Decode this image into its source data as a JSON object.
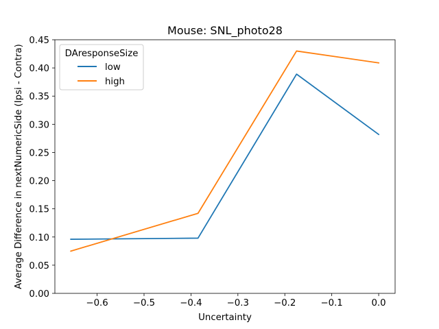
{
  "chart_data": {
    "type": "line",
    "title": "Mouse: SNL_photo28",
    "xlabel": "Uncertainty",
    "ylabel": "Average Difference in nextNumericSide (Ipsi - Contra)",
    "xlim": [
      -0.69,
      0.035
    ],
    "ylim": [
      0.0,
      0.45
    ],
    "xticks": [
      -0.6,
      -0.5,
      -0.4,
      -0.3,
      -0.2,
      -0.1,
      0.0
    ],
    "xtick_labels": [
      "−0.6",
      "−0.5",
      "−0.4",
      "−0.3",
      "−0.2",
      "−0.1",
      "0.0"
    ],
    "yticks": [
      0.0,
      0.05,
      0.1,
      0.15,
      0.2,
      0.25,
      0.3,
      0.35,
      0.4,
      0.45
    ],
    "ytick_labels": [
      "0.00",
      "0.05",
      "0.10",
      "0.15",
      "0.20",
      "0.25",
      "0.30",
      "0.35",
      "0.40",
      "0.45"
    ],
    "grid": false,
    "legend": {
      "title": "DAresponseSize",
      "placement": "top-left"
    },
    "series": [
      {
        "name": "low",
        "color": "#1f77b4",
        "x": [
          -0.656,
          -0.385,
          -0.175,
          0.0
        ],
        "y": [
          0.096,
          0.098,
          0.389,
          0.282
        ]
      },
      {
        "name": "high",
        "color": "#ff7f0e",
        "x": [
          -0.656,
          -0.385,
          -0.175,
          0.0
        ],
        "y": [
          0.075,
          0.142,
          0.43,
          0.409
        ]
      }
    ]
  }
}
